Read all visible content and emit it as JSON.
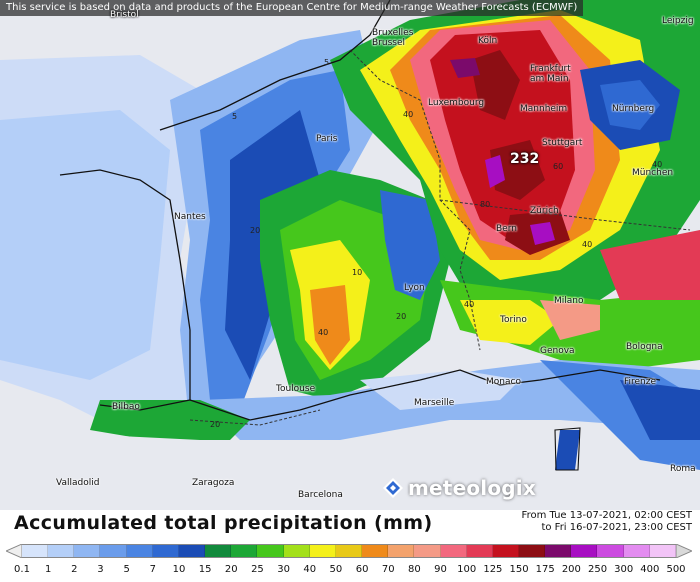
{
  "disclaimer": "This service is based on data and products of the European Centre for Medium-range Weather Forecasts (ECMWF)",
  "title": "Accumulated total precipitation (mm)",
  "period": {
    "from": "From Tue 13-07-2021, 02:00 CEST",
    "to": "to Fri 16-07-2021, 23:00 CEST"
  },
  "logo_text": "meteologix",
  "max_value_label": "232",
  "cities": [
    {
      "name": "Bruxelles",
      "name2": "Brussel"
    },
    {
      "name": "Köln"
    },
    {
      "name": "Leipzig"
    },
    {
      "name": "Frankfurt",
      "name2": "am Main"
    },
    {
      "name": "Luxembourg"
    },
    {
      "name": "Mannheim"
    },
    {
      "name": "Nürnberg"
    },
    {
      "name": "Paris"
    },
    {
      "name": "Stuttgart"
    },
    {
      "name": "München"
    },
    {
      "name": "Nantes"
    },
    {
      "name": "Zürich"
    },
    {
      "name": "Bern"
    },
    {
      "name": "Lyon"
    },
    {
      "name": "Milano"
    },
    {
      "name": "Torino"
    },
    {
      "name": "Genova"
    },
    {
      "name": "Bologna"
    },
    {
      "name": "Monaco"
    },
    {
      "name": "Firenze"
    },
    {
      "name": "Toulouse"
    },
    {
      "name": "Marseille"
    },
    {
      "name": "Bilbao"
    },
    {
      "name": "Roma"
    },
    {
      "name": "Valladolid"
    },
    {
      "name": "Zaragoza"
    },
    {
      "name": "Barcelona"
    },
    {
      "name": "Bristol"
    }
  ],
  "contour_labels": [
    "5",
    "20",
    "40",
    "60",
    "80",
    "40",
    "5",
    "20",
    "40",
    "10",
    "40",
    "20",
    "40"
  ],
  "legend": {
    "ticks": [
      "0.1",
      "1",
      "2",
      "3",
      "5",
      "7",
      "10",
      "15",
      "20",
      "25",
      "30",
      "40",
      "50",
      "60",
      "70",
      "80",
      "90",
      "100",
      "125",
      "150",
      "175",
      "200",
      "250",
      "300",
      "400",
      "500"
    ],
    "colors": [
      "#d6e4fb",
      "#b4cff8",
      "#8fb6f2",
      "#6a9ceb",
      "#4a84e2",
      "#2f69d2",
      "#1b4cb5",
      "#128a3c",
      "#1da736",
      "#46c71c",
      "#a3e01a",
      "#f4f01a",
      "#e8c917",
      "#ef8a1a",
      "#f3a26c",
      "#f49a86",
      "#f2687e",
      "#e33a55",
      "#c4111e",
      "#8d0e14",
      "#7b0a6b",
      "#a70ec2",
      "#cc4be0",
      "#e38cf0",
      "#f2c4f7"
    ],
    "low_color": "#efefef",
    "high_color": "#d9d9d9"
  }
}
